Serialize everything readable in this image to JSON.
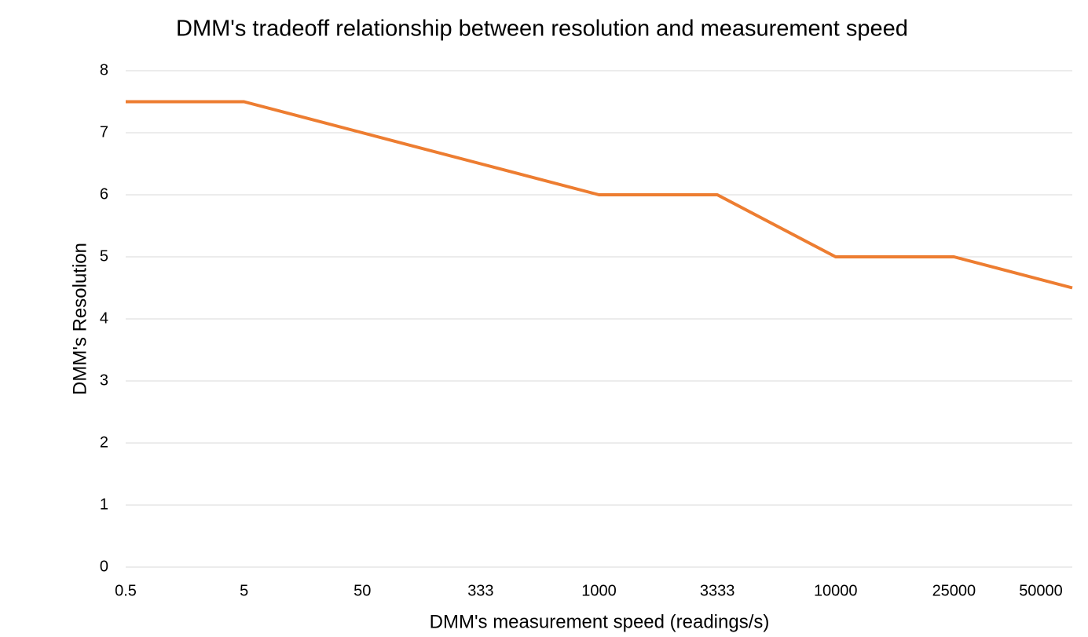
{
  "chart_data": {
    "type": "line",
    "title": "DMM's tradeoff relationship between resolution and measurement speed",
    "x_label": "DMM's measurement speed (readings/s)",
    "y_label": "DMM's Resolution",
    "categories": [
      "0.5",
      "5",
      "50",
      "333",
      "1000",
      "3333",
      "10000",
      "25000",
      "50000"
    ],
    "series": [
      {
        "name": "DMM's Resolution",
        "color": "#ed7d31",
        "values": [
          7.5,
          7.5,
          7,
          6.5,
          6,
          6,
          5,
          5,
          4.5
        ]
      }
    ],
    "ylim": [
      0,
      8
    ],
    "yticks": [
      0,
      1,
      2,
      3,
      4,
      5,
      6,
      7,
      8
    ],
    "grid": true
  }
}
